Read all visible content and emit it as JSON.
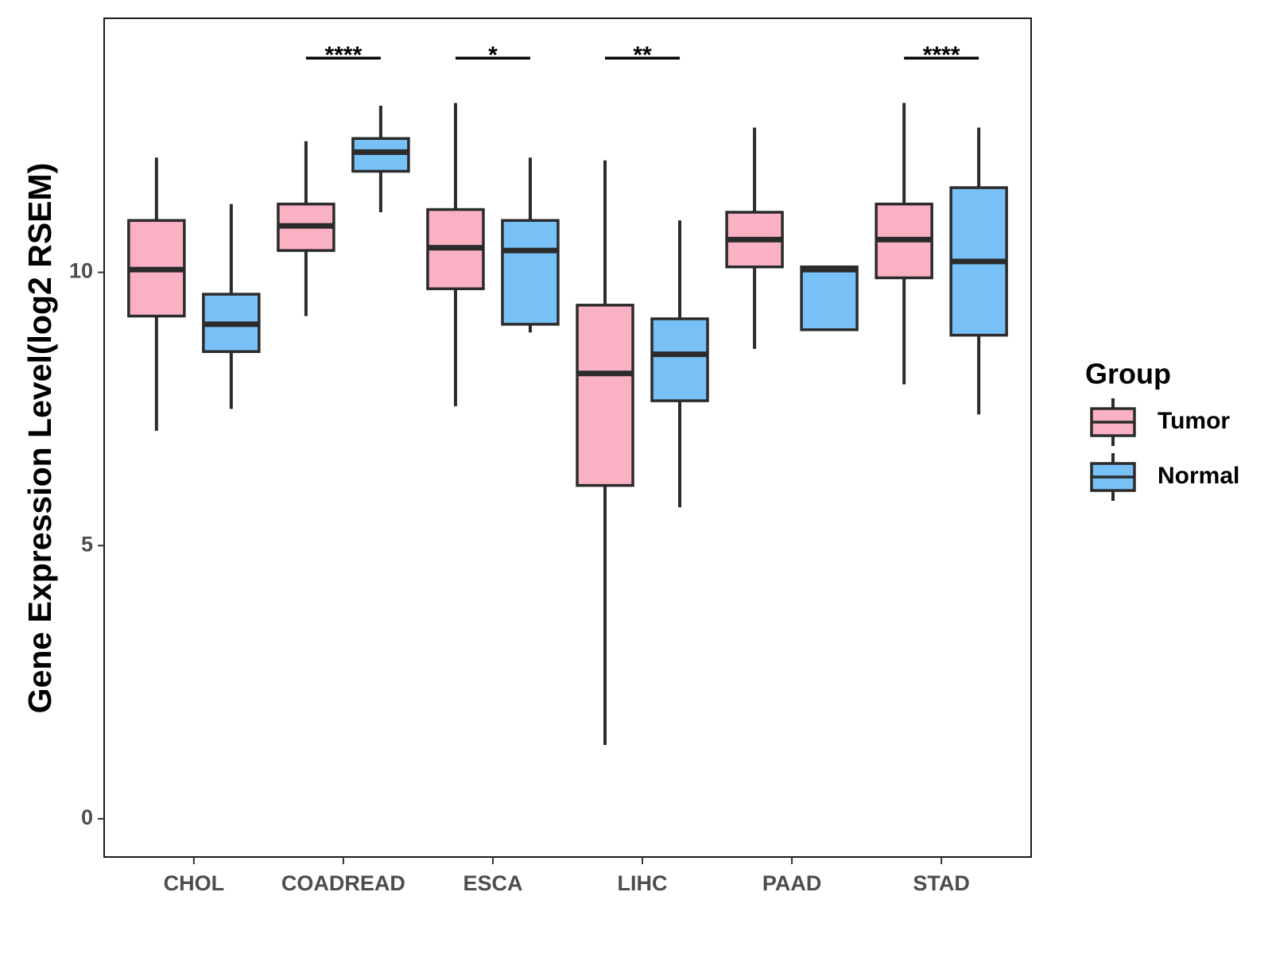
{
  "chart_data": {
    "type": "boxplot",
    "title": "",
    "xlabel": "",
    "ylabel": "Gene Expression Level(log2 RSEM)",
    "ylim": [
      -0.7,
      14.65
    ],
    "yticks": [
      0,
      5,
      10
    ],
    "grid": false,
    "categories": [
      "CHOL",
      "COADREAD",
      "ESCA",
      "LIHC",
      "PAAD",
      "STAD"
    ],
    "series": [
      {
        "name": "Tumor",
        "color": "#fbb1c4",
        "boxes": [
          {
            "whisker_low": 7.1,
            "q1": 9.2,
            "median": 10.05,
            "q3": 10.95,
            "whisker_high": 12.1
          },
          {
            "whisker_low": 9.2,
            "q1": 10.4,
            "median": 10.85,
            "q3": 11.25,
            "whisker_high": 12.4
          },
          {
            "whisker_low": 7.55,
            "q1": 9.7,
            "median": 10.45,
            "q3": 11.15,
            "whisker_high": 13.1
          },
          {
            "whisker_low": 1.35,
            "q1": 6.1,
            "median": 8.15,
            "q3": 9.4,
            "whisker_high": 12.05
          },
          {
            "whisker_low": 8.6,
            "q1": 10.1,
            "median": 10.6,
            "q3": 11.1,
            "whisker_high": 12.65
          },
          {
            "whisker_low": 7.95,
            "q1": 9.9,
            "median": 10.6,
            "q3": 11.25,
            "whisker_high": 13.1
          }
        ]
      },
      {
        "name": "Normal",
        "color": "#78c1f7",
        "boxes": [
          {
            "whisker_low": 7.5,
            "q1": 8.55,
            "median": 9.05,
            "q3": 9.6,
            "whisker_high": 11.25
          },
          {
            "whisker_low": 11.1,
            "q1": 11.85,
            "median": 12.2,
            "q3": 12.45,
            "whisker_high": 13.05
          },
          {
            "whisker_low": 8.9,
            "q1": 9.05,
            "median": 10.4,
            "q3": 10.95,
            "whisker_high": 12.1
          },
          {
            "whisker_low": 5.7,
            "q1": 7.65,
            "median": 8.5,
            "q3": 9.15,
            "whisker_high": 10.95
          },
          {
            "whisker_low": 8.95,
            "q1": 8.95,
            "median": 10.05,
            "q3": 10.1,
            "whisker_high": 10.1
          },
          {
            "whisker_low": 7.4,
            "q1": 8.85,
            "median": 10.2,
            "q3": 11.55,
            "whisker_high": 12.65
          }
        ]
      }
    ],
    "significance": [
      {
        "category": "COADREAD",
        "label": "****"
      },
      {
        "category": "ESCA",
        "label": "*"
      },
      {
        "category": "LIHC",
        "label": "**"
      },
      {
        "category": "STAD",
        "label": "****"
      }
    ],
    "significance_level": 13.92,
    "legend": {
      "title": "Group",
      "position": "right",
      "items": [
        {
          "label": "Tumor",
          "color": "#fbb1c4"
        },
        {
          "label": "Normal",
          "color": "#78c1f7"
        }
      ]
    }
  }
}
